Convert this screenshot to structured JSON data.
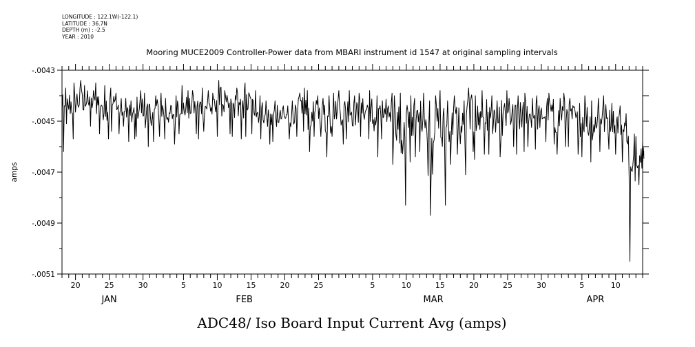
{
  "metadata": {
    "longitude": "LONGITUDE : 122.1W(-122.1)",
    "latitude": "LATITUDE : 36.7N",
    "depth": "DEPTH (m) : -2.5",
    "year": "YEAR : 2010"
  },
  "chart_data": {
    "type": "line",
    "title": "Mooring MUCE2009 Controller-Power data from MBARI instrument id 1547 at original sampling intervals",
    "xlabel": "ADC48/ Iso Board Input Current Avg (amps)",
    "ylabel": "amps",
    "ylim": [
      -0.0051,
      -0.0043
    ],
    "xlim": [
      "2010-01-18",
      "2010-04-14"
    ],
    "y_ticks": [
      {
        "value": -0.0043,
        "label": "-.0043"
      },
      {
        "value": -0.0045,
        "label": "-.0045"
      },
      {
        "value": -0.0047,
        "label": "-.0047"
      },
      {
        "value": -0.0049,
        "label": "-.0049"
      },
      {
        "value": -0.0051,
        "label": "-.0051"
      }
    ],
    "x_day_labels": [
      {
        "date": "2010-01-20",
        "label": "20"
      },
      {
        "date": "2010-01-25",
        "label": "25"
      },
      {
        "date": "2010-01-30",
        "label": "30"
      },
      {
        "date": "2010-02-05",
        "label": "5"
      },
      {
        "date": "2010-02-10",
        "label": "10"
      },
      {
        "date": "2010-02-15",
        "label": "15"
      },
      {
        "date": "2010-02-20",
        "label": "20"
      },
      {
        "date": "2010-02-25",
        "label": "25"
      },
      {
        "date": "2010-03-05",
        "label": "5"
      },
      {
        "date": "2010-03-10",
        "label": "10"
      },
      {
        "date": "2010-03-15",
        "label": "15"
      },
      {
        "date": "2010-03-20",
        "label": "20"
      },
      {
        "date": "2010-03-25",
        "label": "25"
      },
      {
        "date": "2010-03-30",
        "label": "30"
      },
      {
        "date": "2010-04-05",
        "label": "5"
      },
      {
        "date": "2010-04-10",
        "label": "10"
      }
    ],
    "month_labels": [
      {
        "date": "2010-01-25",
        "label": "JAN"
      },
      {
        "date": "2010-02-14",
        "label": "FEB"
      },
      {
        "date": "2010-03-14",
        "label": "MAR"
      },
      {
        "date": "2010-04-07",
        "label": "APR"
      }
    ],
    "series": [
      {
        "x": [
          "2010-01-18",
          "2010-01-19",
          "2010-01-20",
          "2010-01-21",
          "2010-01-22",
          "2010-01-23",
          "2010-01-24",
          "2010-01-25",
          "2010-01-26",
          "2010-01-27",
          "2010-01-28",
          "2010-01-29",
          "2010-01-30",
          "2010-01-31",
          "2010-02-01",
          "2010-02-02",
          "2010-02-03",
          "2010-02-04",
          "2010-02-05",
          "2010-02-06",
          "2010-02-07",
          "2010-02-08",
          "2010-02-09",
          "2010-02-10",
          "2010-02-11",
          "2010-02-12",
          "2010-02-13",
          "2010-02-14",
          "2010-02-15",
          "2010-02-16",
          "2010-02-17",
          "2010-02-18",
          "2010-02-19",
          "2010-02-20",
          "2010-02-21",
          "2010-02-22",
          "2010-02-23",
          "2010-02-24",
          "2010-02-25",
          "2010-02-26",
          "2010-02-27",
          "2010-02-28",
          "2010-03-01",
          "2010-03-02",
          "2010-03-03",
          "2010-03-04",
          "2010-03-05",
          "2010-03-06",
          "2010-03-07",
          "2010-03-08",
          "2010-03-09",
          "2010-03-10",
          "2010-03-11",
          "2010-03-12",
          "2010-03-13",
          "2010-03-14",
          "2010-03-15",
          "2010-03-16",
          "2010-03-17",
          "2010-03-18",
          "2010-03-19",
          "2010-03-20",
          "2010-03-21",
          "2010-03-22",
          "2010-03-23",
          "2010-03-24",
          "2010-03-25",
          "2010-03-26",
          "2010-03-27",
          "2010-03-28",
          "2010-03-29",
          "2010-03-30",
          "2010-03-31",
          "2010-04-01",
          "2010-04-02",
          "2010-04-03",
          "2010-04-04",
          "2010-04-05",
          "2010-04-06",
          "2010-04-07",
          "2010-04-08",
          "2010-04-09",
          "2010-04-10",
          "2010-04-11",
          "2010-04-12",
          "2010-04-13",
          "2010-04-14"
        ],
        "max": [
          -0.00437,
          -0.00435,
          -0.00434,
          -0.00436,
          -0.00438,
          -0.00435,
          -0.00436,
          -0.00437,
          -0.00439,
          -0.00441,
          -0.00442,
          -0.00438,
          -0.00439,
          -0.0044,
          -0.00439,
          -0.00441,
          -0.0044,
          -0.00436,
          -0.00438,
          -0.00438,
          -0.00437,
          -0.00438,
          -0.00439,
          -0.00434,
          -0.00438,
          -0.00437,
          -0.00439,
          -0.00435,
          -0.00438,
          -0.0044,
          -0.00442,
          -0.00442,
          -0.00444,
          -0.00444,
          -0.00442,
          -0.00437,
          -0.00438,
          -0.0044,
          -0.00441,
          -0.0044,
          -0.00439,
          -0.00438,
          -0.00438,
          -0.0044,
          -0.00439,
          -0.00438,
          -0.0044,
          -0.00442,
          -0.00439,
          -0.0044,
          -0.00439,
          -0.0044,
          -0.00441,
          -0.00439,
          -0.00442,
          -0.0044,
          -0.00438,
          -0.00442,
          -0.0044,
          -0.00442,
          -0.00437,
          -0.0044,
          -0.00438,
          -0.0044,
          -0.00442,
          -0.00438,
          -0.00441,
          -0.0044,
          -0.00439,
          -0.00441,
          -0.0044,
          -0.00441,
          -0.00439,
          -0.00441,
          -0.00439,
          -0.00441,
          -0.00443,
          -0.0044,
          -0.00442,
          -0.00441,
          -0.0044,
          -0.00443,
          -0.00444,
          -0.00447,
          -0.00455,
          -0.00456,
          -0.00458
        ],
        "min": [
          -0.00462,
          -0.00457,
          -0.00455,
          -0.00453,
          -0.00452,
          -0.00455,
          -0.00457,
          -0.00454,
          -0.00455,
          -0.00458,
          -0.00457,
          -0.00456,
          -0.0046,
          -0.00458,
          -0.00456,
          -0.00457,
          -0.00459,
          -0.00455,
          -0.00456,
          -0.00455,
          -0.00457,
          -0.00454,
          -0.00456,
          -0.00456,
          -0.00455,
          -0.00456,
          -0.00457,
          -0.00456,
          -0.00455,
          -0.00457,
          -0.00459,
          -0.00458,
          -0.00456,
          -0.00457,
          -0.00456,
          -0.00454,
          -0.00462,
          -0.00456,
          -0.00456,
          -0.00464,
          -0.00456,
          -0.00459,
          -0.00457,
          -0.00459,
          -0.00456,
          -0.00457,
          -0.00464,
          -0.00457,
          -0.00458,
          -0.00467,
          -0.00483,
          -0.00466,
          -0.00464,
          -0.00462,
          -0.00487,
          -0.0047,
          -0.00483,
          -0.00467,
          -0.00463,
          -0.00471,
          -0.00462,
          -0.00465,
          -0.00463,
          -0.00463,
          -0.00464,
          -0.00468,
          -0.0046,
          -0.00463,
          -0.00462,
          -0.0046,
          -0.00461,
          -0.00458,
          -0.00459,
          -0.00463,
          -0.0046,
          -0.0046,
          -0.00463,
          -0.00464,
          -0.00466,
          -0.00462,
          -0.00465,
          -0.00461,
          -0.00463,
          -0.00466,
          -0.00505,
          -0.00475,
          -0.00471
        ]
      }
    ],
    "grid": false
  }
}
